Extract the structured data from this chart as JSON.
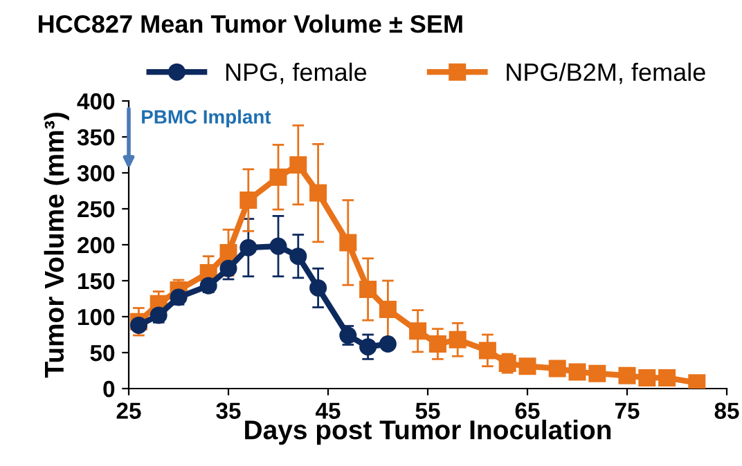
{
  "chart_data": {
    "type": "line",
    "title": "HCC827 Mean Tumor Volume ± SEM",
    "xlabel": "Days post Tumor Inoculation",
    "ylabel": "Tumor Volume (mm³)",
    "series": [
      {
        "name": "NPG, female",
        "color": "#0d2a5e",
        "marker": "circle",
        "x": [
          26,
          28,
          30,
          33,
          35,
          37,
          40,
          42,
          44,
          47,
          49,
          51
        ],
        "values": [
          88,
          102,
          127,
          143,
          167,
          196,
          198,
          184,
          140,
          74,
          58,
          62
        ],
        "errors": [
          7,
          10,
          10,
          9,
          15,
          40,
          42,
          30,
          27,
          13,
          17,
          null
        ]
      },
      {
        "name": "NPG/B2M, female",
        "color": "#e8731a",
        "marker": "square",
        "x": [
          26,
          28,
          30,
          33,
          35,
          37,
          40,
          42,
          44,
          47,
          49,
          51,
          54,
          56,
          58,
          61,
          63,
          65,
          68,
          70,
          72,
          75,
          77,
          79,
          82
        ],
        "values": [
          93,
          118,
          137,
          161,
          189,
          262,
          294,
          311,
          272,
          203,
          138,
          110,
          80,
          62,
          68,
          53,
          35,
          31,
          28,
          23,
          21,
          18,
          15,
          15,
          8
        ],
        "errors": [
          19,
          17,
          14,
          23,
          32,
          43,
          45,
          55,
          68,
          59,
          43,
          40,
          29,
          21,
          23,
          22,
          13,
          null,
          null,
          null,
          null,
          null,
          null,
          null,
          null
        ]
      }
    ],
    "xlim": [
      25,
      85
    ],
    "xticks": [
      25,
      35,
      45,
      55,
      65,
      75,
      85
    ],
    "ylim": [
      0,
      400
    ],
    "yticks": [
      0,
      50,
      100,
      150,
      200,
      250,
      300,
      350,
      400
    ],
    "grid": false,
    "legend": "top",
    "line_style": "solid",
    "annotations": [
      "PBMC Implant"
    ]
  }
}
